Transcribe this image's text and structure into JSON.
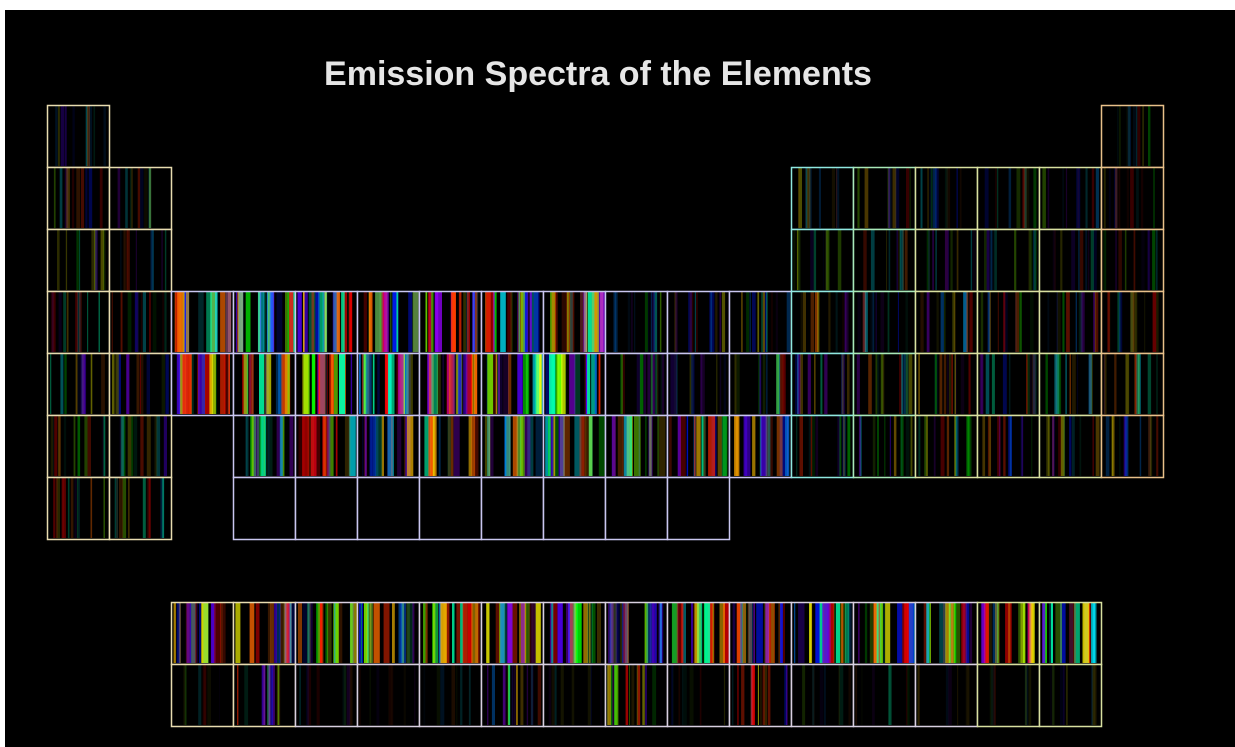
{
  "title": "Emission Spectra of the Elements"
}
